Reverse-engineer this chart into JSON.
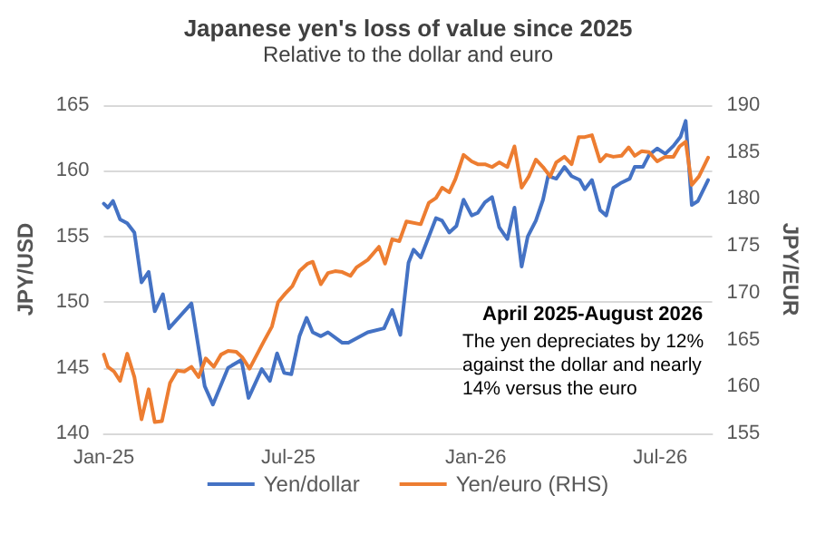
{
  "chart_data": {
    "type": "line",
    "title": "Japanese yen's loss of value since 2025",
    "subtitle": "Relative to the dollar and euro",
    "ylabel": "JPY/USD",
    "y2label": "JPY/EUR",
    "annotations": [
      "April 2025-August 2026",
      "The yen depreciates by 12% against the dollar and nearly 14% versus the euro"
    ],
    "xlim": [
      "2025-01-01",
      "2026-08-21"
    ],
    "xticks": [
      {
        "value": "2025-01-01",
        "label": "Jan-25"
      },
      {
        "value": "2025-07-01",
        "label": "Jul-25"
      },
      {
        "value": "2026-01-01",
        "label": "Jan-26"
      },
      {
        "value": "2026-07-01",
        "label": "Jul-26"
      }
    ],
    "ylim": [
      140,
      165
    ],
    "yticks": [
      140,
      145,
      150,
      155,
      160,
      165
    ],
    "y2lim": [
      155,
      190
    ],
    "y2ticks": [
      155,
      160,
      165,
      170,
      175,
      180,
      185,
      190
    ],
    "grid": "y",
    "legend": "bottom",
    "marker": "none",
    "line_style": "solid",
    "series": [
      {
        "name": "Yen/dollar",
        "color": "#4472c4",
        "x": [
          "2025-01-01",
          "2025-01-05",
          "2025-01-10",
          "2025-01-17",
          "2025-01-24",
          "2025-01-31",
          "2025-02-07",
          "2025-02-14",
          "2025-02-20",
          "2025-02-28",
          "2025-03-06",
          "2025-03-28",
          "2025-04-10",
          "2025-04-18",
          "2025-05-03",
          "2025-05-16",
          "2025-05-23",
          "2025-06-05",
          "2025-06-13",
          "2025-06-20",
          "2025-06-27",
          "2025-07-04",
          "2025-07-12",
          "2025-07-19",
          "2025-07-25",
          "2025-08-02",
          "2025-08-09",
          "2025-08-23",
          "2025-08-29",
          "2025-09-17",
          "2025-10-03",
          "2025-10-11",
          "2025-10-19",
          "2025-10-27",
          "2025-11-01",
          "2025-11-08",
          "2025-11-16",
          "2025-11-23",
          "2025-11-29",
          "2025-12-06",
          "2025-12-13",
          "2025-12-20",
          "2025-12-28",
          "2026-01-03",
          "2026-01-10",
          "2026-01-17",
          "2026-01-24",
          "2026-02-01",
          "2026-02-08",
          "2026-02-15",
          "2026-02-21",
          "2026-03-01",
          "2026-03-08",
          "2026-03-13",
          "2026-03-21",
          "2026-03-29",
          "2026-04-05",
          "2026-04-13",
          "2026-04-18",
          "2026-04-25",
          "2026-05-03",
          "2026-05-09",
          "2026-05-16",
          "2026-05-24",
          "2026-06-01",
          "2026-06-06",
          "2026-06-14",
          "2026-06-20",
          "2026-06-28",
          "2026-07-06",
          "2026-07-14",
          "2026-07-21",
          "2026-07-26",
          "2026-08-01",
          "2026-08-07",
          "2026-08-17"
        ],
        "values": [
          157.5,
          157.2,
          157.7,
          156.3,
          156.0,
          155.3,
          151.5,
          152.3,
          149.3,
          150.6,
          148.0,
          149.9,
          143.6,
          142.2,
          145.0,
          145.6,
          142.7,
          144.9,
          144.0,
          146.1,
          144.6,
          144.5,
          147.4,
          148.8,
          147.7,
          147.4,
          147.7,
          146.9,
          146.9,
          147.7,
          148.0,
          149.4,
          147.5,
          153.0,
          154.0,
          153.4,
          155.0,
          156.4,
          156.2,
          155.3,
          155.8,
          157.8,
          156.6,
          156.8,
          157.6,
          158.0,
          155.7,
          154.8,
          157.2,
          152.7,
          155.0,
          156.2,
          157.8,
          159.6,
          159.4,
          160.3,
          159.6,
          159.3,
          158.6,
          159.3,
          157.0,
          156.6,
          158.7,
          159.1,
          159.4,
          160.3,
          160.3,
          161.2,
          161.7,
          161.3,
          161.9,
          162.6,
          163.8,
          157.4,
          157.7,
          159.3
        ]
      },
      {
        "name": "Yen/euro (RHS)",
        "color": "#ed7d31",
        "axis": "y2",
        "x": [
          "2025-01-01",
          "2025-01-05",
          "2025-01-11",
          "2025-01-17",
          "2025-01-24",
          "2025-01-31",
          "2025-02-07",
          "2025-02-14",
          "2025-02-20",
          "2025-02-27",
          "2025-03-07",
          "2025-03-14",
          "2025-03-21",
          "2025-03-28",
          "2025-04-04",
          "2025-04-11",
          "2025-04-19",
          "2025-04-26",
          "2025-05-03",
          "2025-05-11",
          "2025-05-17",
          "2025-05-24",
          "2025-06-07",
          "2025-06-15",
          "2025-06-21",
          "2025-06-28",
          "2025-07-05",
          "2025-07-12",
          "2025-07-20",
          "2025-07-25",
          "2025-08-02",
          "2025-08-09",
          "2025-08-16",
          "2025-08-23",
          "2025-08-31",
          "2025-09-06",
          "2025-09-17",
          "2025-09-28",
          "2025-10-04",
          "2025-10-11",
          "2025-10-18",
          "2025-10-25",
          "2025-11-08",
          "2025-11-16",
          "2025-11-23",
          "2025-11-29",
          "2025-12-06",
          "2025-12-12",
          "2025-12-20",
          "2025-12-28",
          "2026-01-03",
          "2026-01-10",
          "2026-01-17",
          "2026-01-24",
          "2026-02-01",
          "2026-02-08",
          "2026-02-15",
          "2026-02-22",
          "2026-03-01",
          "2026-03-08",
          "2026-03-15",
          "2026-03-21",
          "2026-03-29",
          "2026-04-05",
          "2026-04-12",
          "2026-04-18",
          "2026-04-25",
          "2026-05-03",
          "2026-05-09",
          "2026-05-16",
          "2026-05-24",
          "2026-05-31",
          "2026-06-06",
          "2026-06-13",
          "2026-06-20",
          "2026-06-28",
          "2026-07-06",
          "2026-07-14",
          "2026-07-20",
          "2026-07-26",
          "2026-08-01",
          "2026-08-08",
          "2026-08-17"
        ],
        "values": [
          163.4,
          162.1,
          161.6,
          160.6,
          163.5,
          161.0,
          156.5,
          159.7,
          156.2,
          156.3,
          160.4,
          161.7,
          161.6,
          162.1,
          161.0,
          163.0,
          162.1,
          163.4,
          163.8,
          163.7,
          163.1,
          161.9,
          164.8,
          166.4,
          169.0,
          169.9,
          170.7,
          172.3,
          173.1,
          173.3,
          170.9,
          172.1,
          172.3,
          172.2,
          171.8,
          172.7,
          173.5,
          174.9,
          173.1,
          175.7,
          175.5,
          177.6,
          177.3,
          179.6,
          180.1,
          181.2,
          180.7,
          182.1,
          184.7,
          184.0,
          183.7,
          183.7,
          183.4,
          183.9,
          183.4,
          185.6,
          181.2,
          182.4,
          184.2,
          183.4,
          182.4,
          183.9,
          184.5,
          183.7,
          186.6,
          186.6,
          186.8,
          184.0,
          184.7,
          184.5,
          184.6,
          185.5,
          184.6,
          185.1,
          185.0,
          184.0,
          184.5,
          184.5,
          185.6,
          186.1,
          181.5,
          182.4,
          184.4
        ]
      }
    ]
  }
}
